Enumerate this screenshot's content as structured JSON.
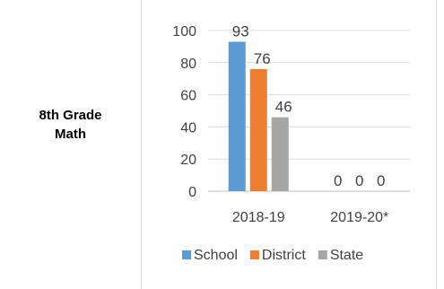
{
  "row_label": [
    "8th Grade",
    "Math"
  ],
  "chart_data": {
    "type": "bar",
    "categories": [
      "2018-19",
      "2019-20*"
    ],
    "series": [
      {
        "name": "School",
        "values": [
          93,
          0
        ],
        "color": "#5b9bd5"
      },
      {
        "name": "District",
        "values": [
          76,
          0
        ],
        "color": "#ed7d31"
      },
      {
        "name": "State",
        "values": [
          46,
          0
        ],
        "color": "#a5a5a5"
      }
    ],
    "data_labels": [
      [
        "93",
        "0"
      ],
      [
        "76",
        "0"
      ],
      [
        "46",
        "0"
      ]
    ],
    "title": "",
    "xlabel": "",
    "ylabel": "",
    "ylim": [
      0,
      100
    ],
    "yticks": [
      0,
      20,
      40,
      60,
      80,
      100
    ],
    "grid": true,
    "legend": "bottom"
  }
}
